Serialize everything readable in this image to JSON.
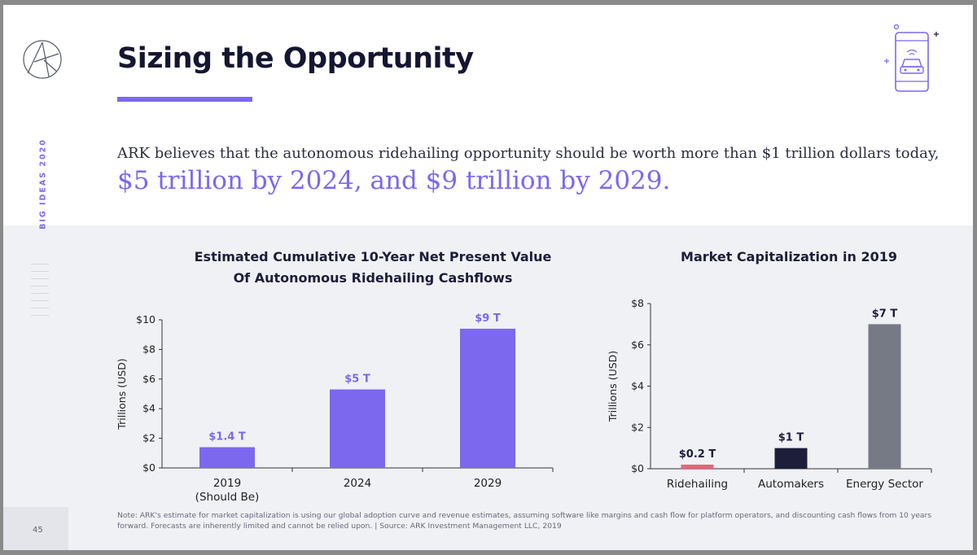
{
  "sidebar": {
    "vertical_label": "BIG IDEAS 2020",
    "page_number": "45"
  },
  "header": {
    "title": "Sizing the Opportunity",
    "subtitle_line1": "ARK believes that the autonomous ridehailing opportunity should be worth more than $1 trillion dollars today,",
    "subtitle_line2": "$5 trillion by 2024, and $9 trillion by 2029."
  },
  "icons": {
    "logo": "ark-logo-icon",
    "header_icon": "phone-car-icon"
  },
  "colors": {
    "accent": "#7b68ee",
    "dark": "#1c1e3a",
    "pink": "#e8647a",
    "gray": "#767a85",
    "band": "#f0f1f5"
  },
  "chart_data": [
    {
      "type": "bar",
      "title_line1": "Estimated Cumulative 10-Year Net Present Value",
      "title_line2": "Of Autonomous Ridehailing Cashflows",
      "ylabel": "Trillions (USD)",
      "ylim": [
        0,
        10
      ],
      "yticks": [
        0,
        2,
        4,
        6,
        8,
        10
      ],
      "ytick_labels": [
        "$0",
        "$2",
        "$4",
        "$6",
        "$8",
        "$10"
      ],
      "categories": [
        "2019",
        "2024",
        "2029"
      ],
      "category_sublabels": [
        "(Should Be)",
        "",
        ""
      ],
      "values": [
        1.4,
        5.3,
        9.4
      ],
      "data_labels": [
        "$1.4 T",
        "$5 T",
        "$9 T"
      ],
      "bar_colors": [
        "#7b68ee",
        "#7b68ee",
        "#7b68ee"
      ],
      "label_color": "#7b68ee"
    },
    {
      "type": "bar",
      "title_line1": "Market Capitalization in 2019",
      "ylabel": "Trillions (USD)",
      "ylim": [
        0,
        8
      ],
      "yticks": [
        0,
        2,
        4,
        6,
        8
      ],
      "ytick_labels": [
        "$0",
        "$2",
        "$4",
        "$6",
        "$8"
      ],
      "categories": [
        "Ridehailing",
        "Automakers",
        "Energy Sector"
      ],
      "values": [
        0.2,
        1.0,
        7.0
      ],
      "data_labels": [
        "$0.2 T",
        "$1 T",
        "$7 T"
      ],
      "bar_colors": [
        "#e8647a",
        "#1c1e3a",
        "#767a85"
      ],
      "label_color": "#1c1e3a"
    }
  ],
  "footer": {
    "note": "Note: ARK's estimate for market capitalization is using our global adoption curve and revenue estimates, assuming software like margins and cash flow for platform operators, and discounting cash flows from 10 years forward. Forecasts are inherently limited and cannot be relied upon.  |  Source: ARK Investment Management LLC, 2019"
  }
}
